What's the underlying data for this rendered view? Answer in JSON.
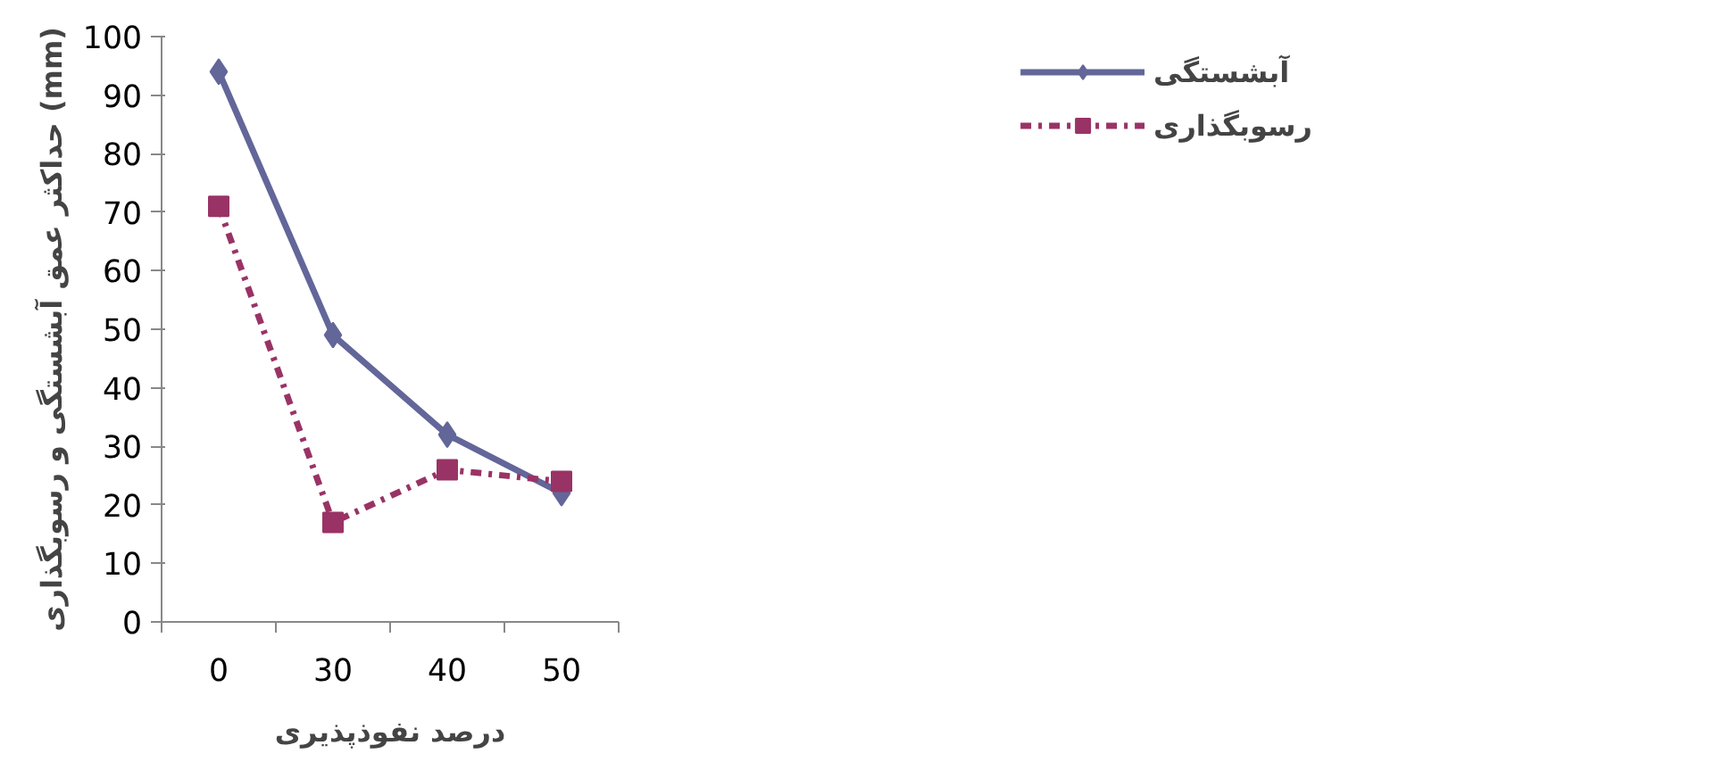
{
  "chart_data": {
    "type": "line",
    "xlabel": "درصد نفوذپذیری",
    "ylabel": "حداکثر عمق آبشستگی و رسوبگذاری (mm)",
    "categories": [
      "0",
      "30",
      "40",
      "50"
    ],
    "series": [
      {
        "name": "آبشستگی",
        "color": "#636699",
        "values": [
          94,
          49,
          32,
          22
        ],
        "marker": "diamond",
        "line_style": "solid"
      },
      {
        "name": "رسوبگذاری",
        "color": "#993366",
        "values": [
          71,
          17,
          26,
          24
        ],
        "marker": "square",
        "line_style": "dashdot"
      }
    ],
    "ylim": [
      0,
      100
    ],
    "yticks": [
      0,
      10,
      20,
      30,
      40,
      50,
      60,
      70,
      80,
      90,
      100
    ],
    "grid": false,
    "legend": "top right"
  }
}
